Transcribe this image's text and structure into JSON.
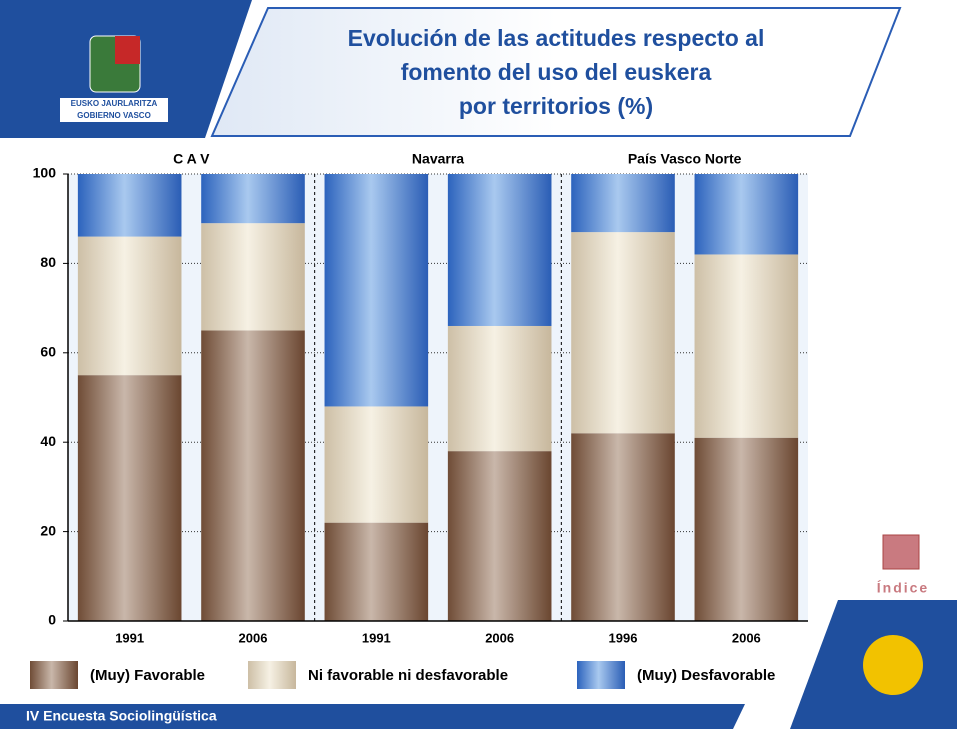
{
  "header": {
    "logo_line1": "EUSKO JAURLARITZA",
    "logo_line2": "GOBIERNO VASCO"
  },
  "index_label": "Índice",
  "footer": "IV Encuesta Sociolingüística",
  "chart_data": {
    "type": "stacked_bar",
    "title": "Evolución de las actitudes respecto al fomento del uso del euskera por territorios (%)",
    "group_labels": [
      "C A V",
      "Navarra",
      "País Vasco Norte"
    ],
    "categories": [
      "1991",
      "2006",
      "1991",
      "2006",
      "1996",
      "2006"
    ],
    "series": [
      {
        "name": "(Muy) Favorable",
        "color": "#8a6a55",
        "values": [
          55,
          65,
          22,
          38,
          42,
          41
        ]
      },
      {
        "name": "Ni favorable ni desfavorable",
        "color": "#e6dcc8",
        "values": [
          31,
          24,
          26,
          28,
          45,
          41
        ]
      },
      {
        "name": "(Muy) Desfavorable",
        "color": "#4f86d4",
        "values": [
          14,
          11,
          52,
          34,
          13,
          18
        ]
      }
    ],
    "ylim": [
      0,
      100
    ],
    "yticks": [
      0,
      20,
      40,
      60,
      80,
      100
    ],
    "grid": true
  }
}
